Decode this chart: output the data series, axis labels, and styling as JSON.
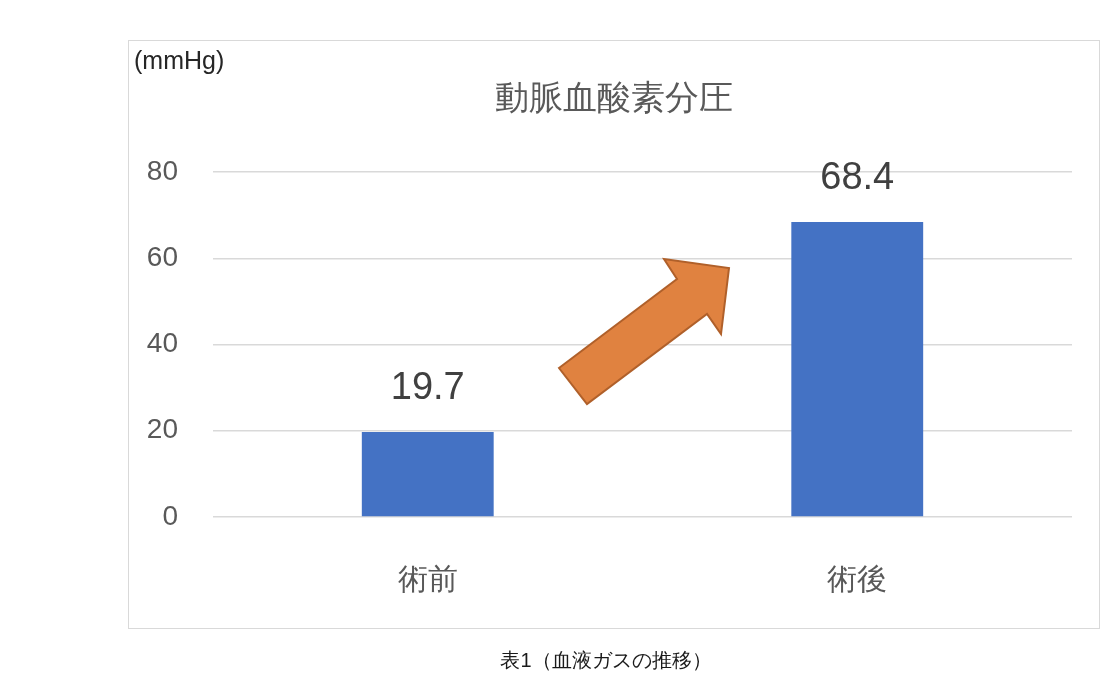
{
  "chart_data": {
    "type": "bar",
    "title": "動脈血酸素分圧",
    "ylabel": "(mmHg)",
    "categories": [
      "術前",
      "術後"
    ],
    "values": [
      19.7,
      68.4
    ],
    "color": "#4472c4",
    "ylim": [
      0,
      80
    ],
    "yticks": [
      0,
      20,
      40,
      60,
      80
    ],
    "grid": "y",
    "data_labels": true,
    "annotations": [
      "表1（血液ガスの推移）"
    ]
  }
}
